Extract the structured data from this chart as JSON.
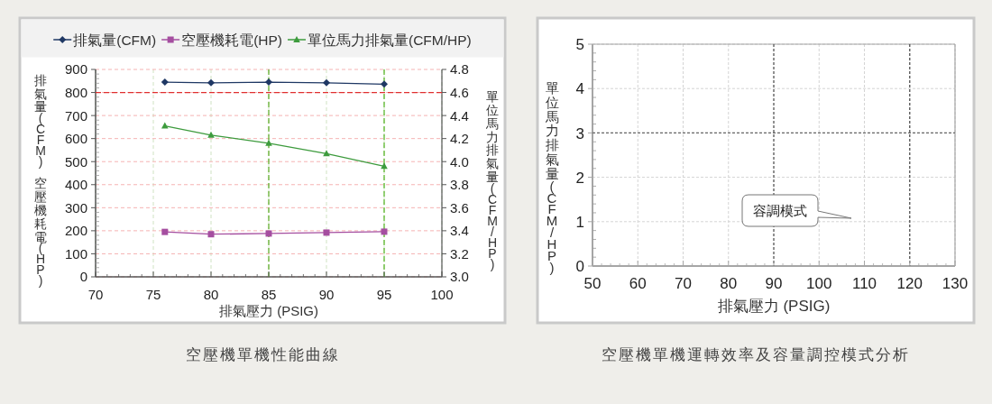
{
  "chart_data": [
    {
      "type": "line",
      "title": "空壓機單機性能曲線",
      "xlabel": "排氣壓力 (PSIG)",
      "ylabel": "排氣量(CFM) 空壓機耗電(HP)",
      "y2label": "單位馬力排氣量(CFM/HP)",
      "x": [
        76,
        80,
        85,
        90,
        95
      ],
      "xlim": [
        70,
        100
      ],
      "xticks": [
        70,
        75,
        80,
        85,
        90,
        95,
        100
      ],
      "ylim": [
        0,
        900
      ],
      "yticks": [
        0,
        100,
        200,
        300,
        400,
        500,
        600,
        700,
        800,
        900
      ],
      "y2lim": [
        3,
        4.8
      ],
      "y2ticks": [
        {
          "value": 3,
          "label": "3.0"
        },
        3.2,
        3.4,
        3.6,
        3.8,
        {
          "value": 4,
          "label": "4.0"
        },
        4.2,
        4.4,
        4.6,
        4.8
      ],
      "grid": true,
      "legend": "top",
      "ref_lines": [
        {
          "axis": "y",
          "value": 800,
          "color": "#e03030",
          "line_style": "dashed"
        },
        {
          "axis": "x",
          "value": 85,
          "color": "#66b032",
          "line_style": "dashed"
        },
        {
          "axis": "x",
          "value": 95,
          "color": "#5cb82e",
          "line_style": "dashed"
        }
      ],
      "series": [
        {
          "name": "排氣量(CFM)",
          "color": "#1f3864",
          "marker": "diamond",
          "values": [
            845,
            842,
            845,
            842,
            836
          ]
        },
        {
          "name": "空壓機耗電(HP)",
          "color": "#a54ea0",
          "marker": "square",
          "values": [
            195,
            185,
            188,
            192,
            196
          ]
        },
        {
          "name": "單位馬力排氣量(CFM/HP)",
          "color": "#3d9b3d",
          "marker": "triangle",
          "axis": "y2",
          "values": [
            4.31,
            4.23,
            4.16,
            4.07,
            3.96
          ]
        }
      ]
    },
    {
      "type": "line",
      "title": "空壓機單機運轉效率及容量調控模式分析",
      "xlabel": "排氣壓力 (PSIG)",
      "ylabel": "單位馬力排氣量(CFM/HP)",
      "xlim": [
        50,
        130
      ],
      "xticks": [
        50,
        60,
        70,
        80,
        90,
        100,
        110,
        120,
        130
      ],
      "ylim": [
        0,
        5
      ],
      "yticks": [
        0,
        1,
        2,
        3,
        4,
        5
      ],
      "grid": true,
      "ref_lines": [
        {
          "axis": "x",
          "value": 90,
          "color": "#606060",
          "line_style": "dashed"
        },
        {
          "axis": "x",
          "value": 120,
          "color": "#555555",
          "line_style": "dashed"
        },
        {
          "axis": "y",
          "value": 3,
          "color": "#666666",
          "line_style": "dashed"
        }
      ],
      "annotations": [
        "容調模式"
      ]
    }
  ]
}
